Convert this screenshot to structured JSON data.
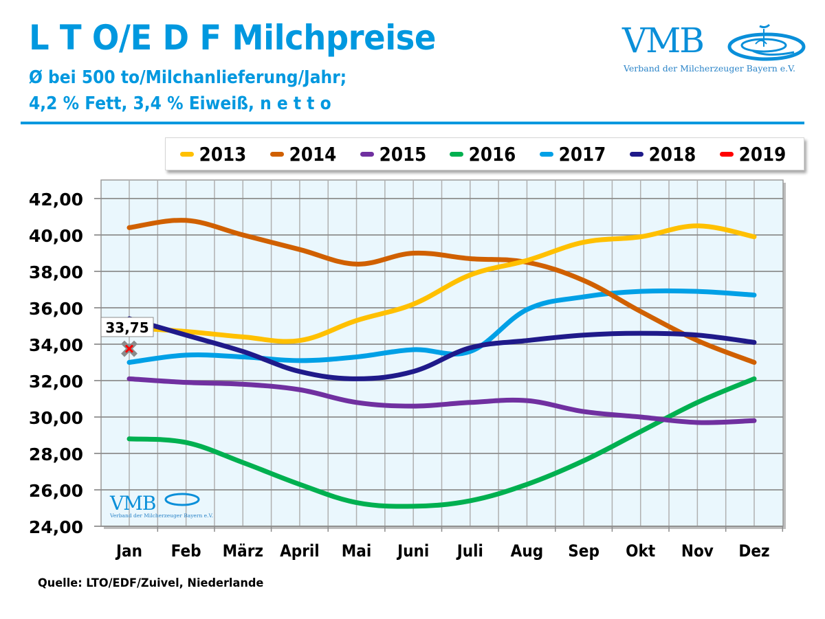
{
  "header": {
    "title": "L T O/E D F Milchpreise",
    "subtitle_line1": "Ø bei 500 to/Milchanlieferung/Jahr;",
    "subtitle_line2": "4,2 % Fett, 3,4 % Eiweiß, n e t t o"
  },
  "logo": {
    "wordmark": "VMB",
    "tagline": "Verband der Milcherzeuger Bayern e.V.",
    "icon": "vmb-splash-icon"
  },
  "footer": {
    "source": "Quelle: LTO/EDF/Zuivel, Niederlande"
  },
  "chart_data": {
    "type": "line",
    "title": "L T O/E D F Milchpreise",
    "subtitle": "Ø bei 500 to/Milchanlieferung/Jahr; 4,2 % Fett, 3,4 % Eiweiß, n e t t o",
    "xlabel": "",
    "ylabel": "",
    "categories": [
      "Jan",
      "Feb",
      "März",
      "April",
      "Mai",
      "Juni",
      "Juli",
      "Aug",
      "Sep",
      "Okt",
      "Nov",
      "Dez"
    ],
    "ylim": [
      24,
      42
    ],
    "yticks": [
      24,
      26,
      28,
      30,
      32,
      34,
      36,
      38,
      40,
      42
    ],
    "ytick_labels": [
      "24,00",
      "26,00",
      "28,00",
      "30,00",
      "32,00",
      "34,00",
      "36,00",
      "38,00",
      "40,00",
      "42,00"
    ],
    "grid": true,
    "legend_position": "top",
    "smooth": true,
    "series": [
      {
        "name": "2013",
        "color": "#ffc000",
        "values": [
          34.9,
          34.7,
          34.4,
          34.2,
          35.3,
          36.2,
          37.8,
          38.6,
          39.6,
          39.9,
          40.5,
          39.9
        ]
      },
      {
        "name": "2014",
        "color": "#d06000",
        "values": [
          40.4,
          40.8,
          40.0,
          39.2,
          38.4,
          39.0,
          38.7,
          38.5,
          37.5,
          35.8,
          34.2,
          33.0
        ]
      },
      {
        "name": "2015",
        "color": "#7030a0",
        "values": [
          32.1,
          31.9,
          31.8,
          31.5,
          30.8,
          30.6,
          30.8,
          30.9,
          30.3,
          30.0,
          29.7,
          29.8
        ]
      },
      {
        "name": "2016",
        "color": "#00b050",
        "values": [
          28.8,
          28.6,
          27.5,
          26.3,
          25.3,
          25.1,
          25.4,
          26.3,
          27.6,
          29.2,
          30.8,
          32.1
        ]
      },
      {
        "name": "2017",
        "color": "#00a0e6",
        "values": [
          33.0,
          33.4,
          33.3,
          33.1,
          33.3,
          33.7,
          33.6,
          35.9,
          36.6,
          36.9,
          36.9,
          36.7
        ]
      },
      {
        "name": "2018",
        "color": "#1f1a8a",
        "values": [
          35.4,
          34.5,
          33.6,
          32.5,
          32.1,
          32.5,
          33.8,
          34.2,
          34.5,
          34.6,
          34.5,
          34.1
        ]
      },
      {
        "name": "2019",
        "color": "#ff0000",
        "values": [
          33.75,
          null,
          null,
          null,
          null,
          null,
          null,
          null,
          null,
          null,
          null,
          null
        ]
      }
    ],
    "annotations": [
      {
        "series": "2019",
        "category": "Jan",
        "value": 33.75,
        "text": "33,75"
      }
    ]
  },
  "colors": {
    "brand_blue": "#0098df",
    "plot_background": "#eaf7fd",
    "grid": "#a6a6a6"
  }
}
